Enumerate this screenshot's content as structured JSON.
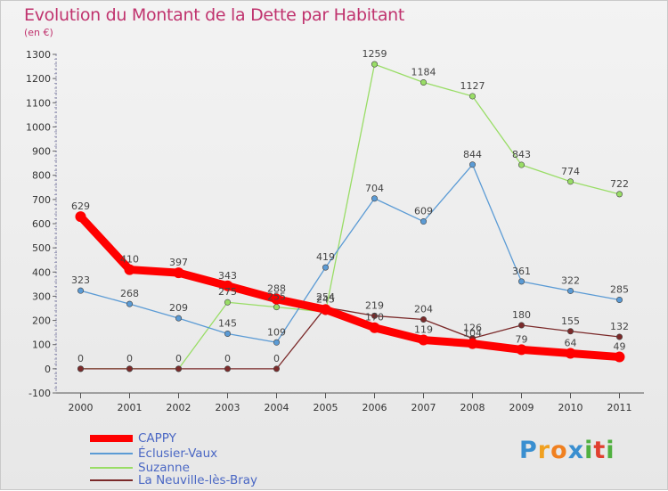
{
  "header": {
    "title": "Evolution du Montant de la Dette par Habitant",
    "subtitle": "(en €)"
  },
  "logo": {
    "text": "Proxiti",
    "letters": [
      "P",
      "r",
      "o",
      "x",
      "i",
      "t",
      "i"
    ],
    "colors": [
      "#3a8fd0",
      "#f0a020",
      "#f08020",
      "#3a8fd0",
      "#50b040",
      "#e04030",
      "#50b040"
    ]
  },
  "chart_data": {
    "type": "line",
    "title": "Evolution du Montant de la Dette par Habitant",
    "subtitle": "(en €)",
    "x": [
      "2000",
      "2001",
      "2002",
      "2003",
      "2004",
      "2005",
      "2006",
      "2007",
      "2008",
      "2009",
      "2010",
      "2011"
    ],
    "yticks": [
      "1300",
      "1200",
      "1100",
      "1000",
      "900",
      "800",
      "700",
      "600",
      "500",
      "400",
      "300",
      "200",
      "100",
      "0",
      "-100"
    ],
    "ylim": [
      -100,
      1300
    ],
    "grid": false,
    "legend_position": "bottom-left",
    "series": [
      {
        "name": "CAPPY",
        "color": "#ff0000",
        "thick": true,
        "values": [
          629,
          410,
          397,
          343,
          288,
          245,
          170,
          119,
          104,
          79,
          64,
          49
        ],
        "labels": [
          "629",
          "410",
          "397",
          "343",
          "288",
          "245",
          "170",
          "119",
          "104",
          "79",
          "64",
          "49"
        ]
      },
      {
        "name": "Éclusier-Vaux",
        "color": "#5b9bd5",
        "values": [
          323,
          268,
          209,
          145,
          109,
          419,
          704,
          609,
          844,
          361,
          322,
          285
        ],
        "labels": [
          "323",
          "268",
          "209",
          "145",
          "109",
          "419",
          "704",
          "609",
          "844",
          "361",
          "322",
          "285"
        ]
      },
      {
        "name": "Suzanne",
        "color": "#99dd66",
        "values": [
          0,
          0,
          0,
          275,
          255,
          235,
          1259,
          1184,
          1127,
          843,
          774,
          722
        ],
        "labels": [
          "",
          "",
          "",
          "275",
          "255",
          "",
          "1259",
          "1184",
          "1127",
          "843",
          "774",
          "722"
        ]
      },
      {
        "name": "La Neuville-lès-Bray",
        "color": "#7b2a2a",
        "values": [
          0,
          0,
          0,
          0,
          0,
          254,
          219,
          204,
          126,
          180,
          155,
          132
        ],
        "labels": [
          "0",
          "0",
          "0",
          "0",
          "0",
          "254",
          "219",
          "204",
          "126",
          "180",
          "155",
          "132"
        ]
      }
    ]
  }
}
